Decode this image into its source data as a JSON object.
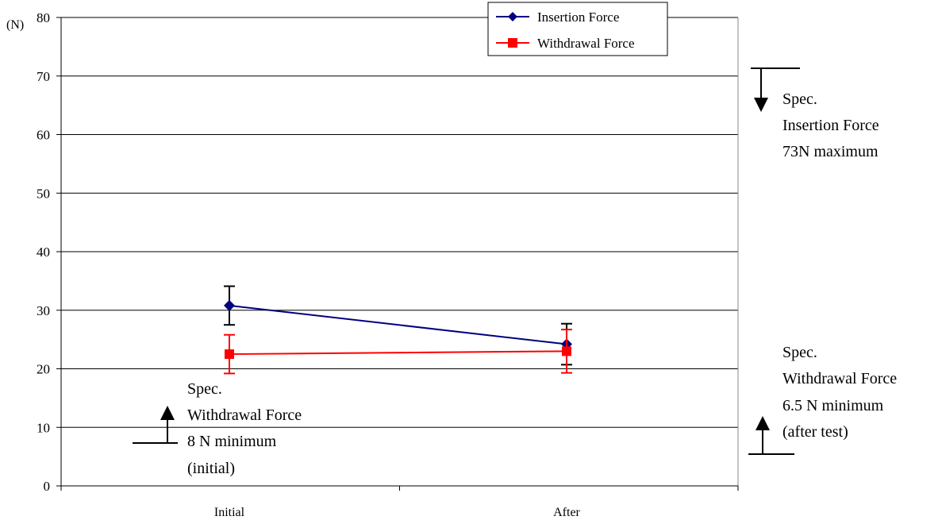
{
  "chart_data": {
    "type": "line",
    "unit_label": "(N)",
    "categories": [
      "Initial",
      "After"
    ],
    "ylim": [
      0,
      80
    ],
    "yticks": [
      0,
      10,
      20,
      30,
      40,
      50,
      60,
      70,
      80
    ],
    "grid": true,
    "legend_position": "top-right",
    "series": [
      {
        "name": "Insertion Force",
        "color": "#000080",
        "marker": "diamond",
        "values": [
          30.8,
          24.2
        ],
        "error_low": [
          27.5,
          20.7
        ],
        "error_high": [
          34.1,
          27.7
        ],
        "error_color": "#000000"
      },
      {
        "name": "Withdrawal Force",
        "color": "#ff0000",
        "marker": "square",
        "values": [
          22.5,
          23.0
        ],
        "error_low": [
          19.2,
          19.3
        ],
        "error_high": [
          25.8,
          26.7
        ],
        "error_color": "#ff0000"
      }
    ],
    "annotations": [
      {
        "lines": [
          "Spec.",
          "Insertion Force",
          "73N maximum"
        ],
        "limit": 73,
        "direction": "down"
      },
      {
        "lines": [
          "Spec.",
          "Withdrawal Force",
          "6.5 N minimum",
          "(after test)"
        ],
        "limit": 6.5,
        "direction": "up"
      },
      {
        "lines": [
          "Spec.",
          "Withdrawal Force",
          "8 N minimum",
          "(initial)"
        ],
        "limit": 8,
        "direction": "up"
      }
    ]
  }
}
